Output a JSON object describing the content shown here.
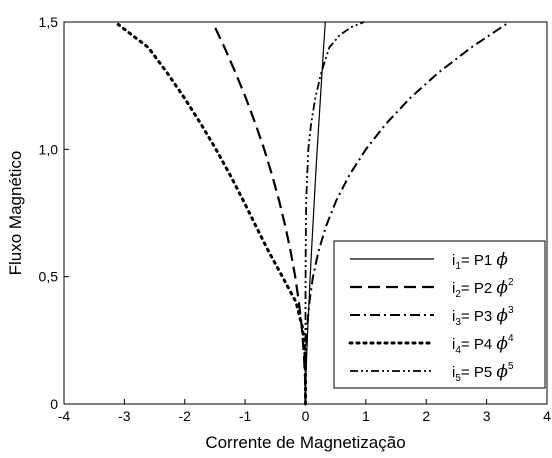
{
  "chart_data": {
    "type": "line",
    "xlabel": "Corrente de Magnetização",
    "ylabel": "Fluxo Magnético",
    "xlim": [
      -4,
      4
    ],
    "ylim": [
      0,
      1.5
    ],
    "x_ticks": [
      -4,
      -3,
      -2,
      -1,
      0,
      1,
      2,
      3,
      4
    ],
    "x_tick_labels": [
      "-4",
      "-3",
      "-2",
      "-1",
      "0",
      "1",
      "2",
      "3",
      "4"
    ],
    "y_ticks": [
      0,
      0.5,
      1.0,
      1.5
    ],
    "y_tick_labels": [
      "0",
      "0,5",
      "1,0",
      "1,5"
    ],
    "grid": false,
    "legend_position": "bottom-right",
    "series": [
      {
        "name": "i1= P1 ϕ",
        "legend": {
          "i": "i",
          "sub": "1",
          "eq": "= P1 ",
          "phi": "ϕ",
          "sup": ""
        },
        "dash": "solid",
        "points": [
          [
            0,
            0
          ],
          [
            0.0072,
            0.1
          ],
          [
            0.0216,
            0.2
          ],
          [
            0.0387,
            0.3
          ],
          [
            0.0576,
            0.4
          ],
          [
            0.0779,
            0.5
          ],
          [
            0.0994,
            0.6
          ],
          [
            0.1218,
            0.7
          ],
          [
            0.1452,
            0.8
          ],
          [
            0.1694,
            0.9
          ],
          [
            0.1943,
            1.0
          ],
          [
            0.2199,
            1.1
          ],
          [
            0.2462,
            1.2
          ],
          [
            0.2731,
            1.3
          ],
          [
            0.3005,
            1.4
          ],
          [
            0.3285,
            1.5
          ]
        ]
      },
      {
        "name": "i2= P2 ϕ2",
        "legend": {
          "i": "i",
          "sub": "2",
          "eq": "= P2 ",
          "phi": "ϕ",
          "sup": "2"
        },
        "dash": "dashed",
        "points": [
          [
            0,
            0
          ],
          [
            -0.0068,
            0.1
          ],
          [
            -0.0274,
            0.2
          ],
          [
            -0.0616,
            0.3
          ],
          [
            -0.1096,
            0.4
          ],
          [
            -0.1712,
            0.5
          ],
          [
            -0.2465,
            0.6
          ],
          [
            -0.3355,
            0.7
          ],
          [
            -0.4382,
            0.8
          ],
          [
            -0.5546,
            0.9
          ],
          [
            -0.6847,
            1.0
          ],
          [
            -0.8285,
            1.1
          ],
          [
            -0.986,
            1.2
          ],
          [
            -1.1572,
            1.3
          ],
          [
            -1.3421,
            1.4
          ],
          [
            -1.5,
            1.48
          ]
        ]
      },
      {
        "name": "i3= P3 ϕ3",
        "legend": {
          "i": "i",
          "sub": "3",
          "eq": "= P3 ",
          "phi": "ϕ",
          "sup": "3"
        },
        "dash": "dashdot",
        "points": [
          [
            0,
            0
          ],
          [
            0.001,
            0.1
          ],
          [
            0.008,
            0.2
          ],
          [
            0.027,
            0.3
          ],
          [
            0.064,
            0.4
          ],
          [
            0.125,
            0.5
          ],
          [
            0.216,
            0.6
          ],
          [
            0.343,
            0.7
          ],
          [
            0.512,
            0.8
          ],
          [
            0.729,
            0.9
          ],
          [
            1.0,
            1.0
          ],
          [
            1.331,
            1.1
          ],
          [
            1.728,
            1.2
          ],
          [
            2.197,
            1.3
          ],
          [
            2.744,
            1.4
          ],
          [
            3.375,
            1.5
          ]
        ]
      },
      {
        "name": "i4= P4 ϕ4",
        "legend": {
          "i": "i",
          "sub": "4",
          "eq": "= P4 ",
          "phi": "ϕ",
          "sup": "4"
        },
        "dash": "dotted",
        "points": [
          [
            0,
            0
          ],
          [
            -0.0006,
            0.1
          ],
          [
            -0.0098,
            0.2
          ],
          [
            -0.0496,
            0.3
          ],
          [
            -0.1567,
            0.4
          ],
          [
            -0.3826,
            0.5
          ],
          [
            -0.6134,
            0.6
          ],
          [
            -0.8246,
            0.7
          ],
          [
            -1.0326,
            0.8
          ],
          [
            -1.2503,
            0.9
          ],
          [
            -1.4828,
            1.0
          ],
          [
            -1.7327,
            1.1
          ],
          [
            -2.0016,
            1.2
          ],
          [
            -2.2912,
            1.3
          ],
          [
            -2.6033,
            1.4
          ],
          [
            -3.1,
            1.49
          ]
        ]
      },
      {
        "name": "i5= P5 ϕ5",
        "legend": {
          "i": "i",
          "sub": "5",
          "eq": "= P5 ",
          "phi": "ϕ",
          "sup": "5"
        },
        "dash": "dashdotdot",
        "points": [
          [
            0,
            0
          ],
          [
            0.0001,
            0.2
          ],
          [
            0.0008,
            0.4
          ],
          [
            0.0036,
            0.6
          ],
          [
            0.0118,
            0.8
          ],
          [
            0.0457,
            1.0
          ],
          [
            0.0928,
            1.1
          ],
          [
            0.1614,
            1.2
          ],
          [
            0.2597,
            1.3
          ],
          [
            0.3943,
            1.4
          ],
          [
            0.5731,
            1.45
          ],
          [
            0.7623,
            1.48
          ],
          [
            0.9686,
            1.5
          ]
        ]
      }
    ]
  }
}
